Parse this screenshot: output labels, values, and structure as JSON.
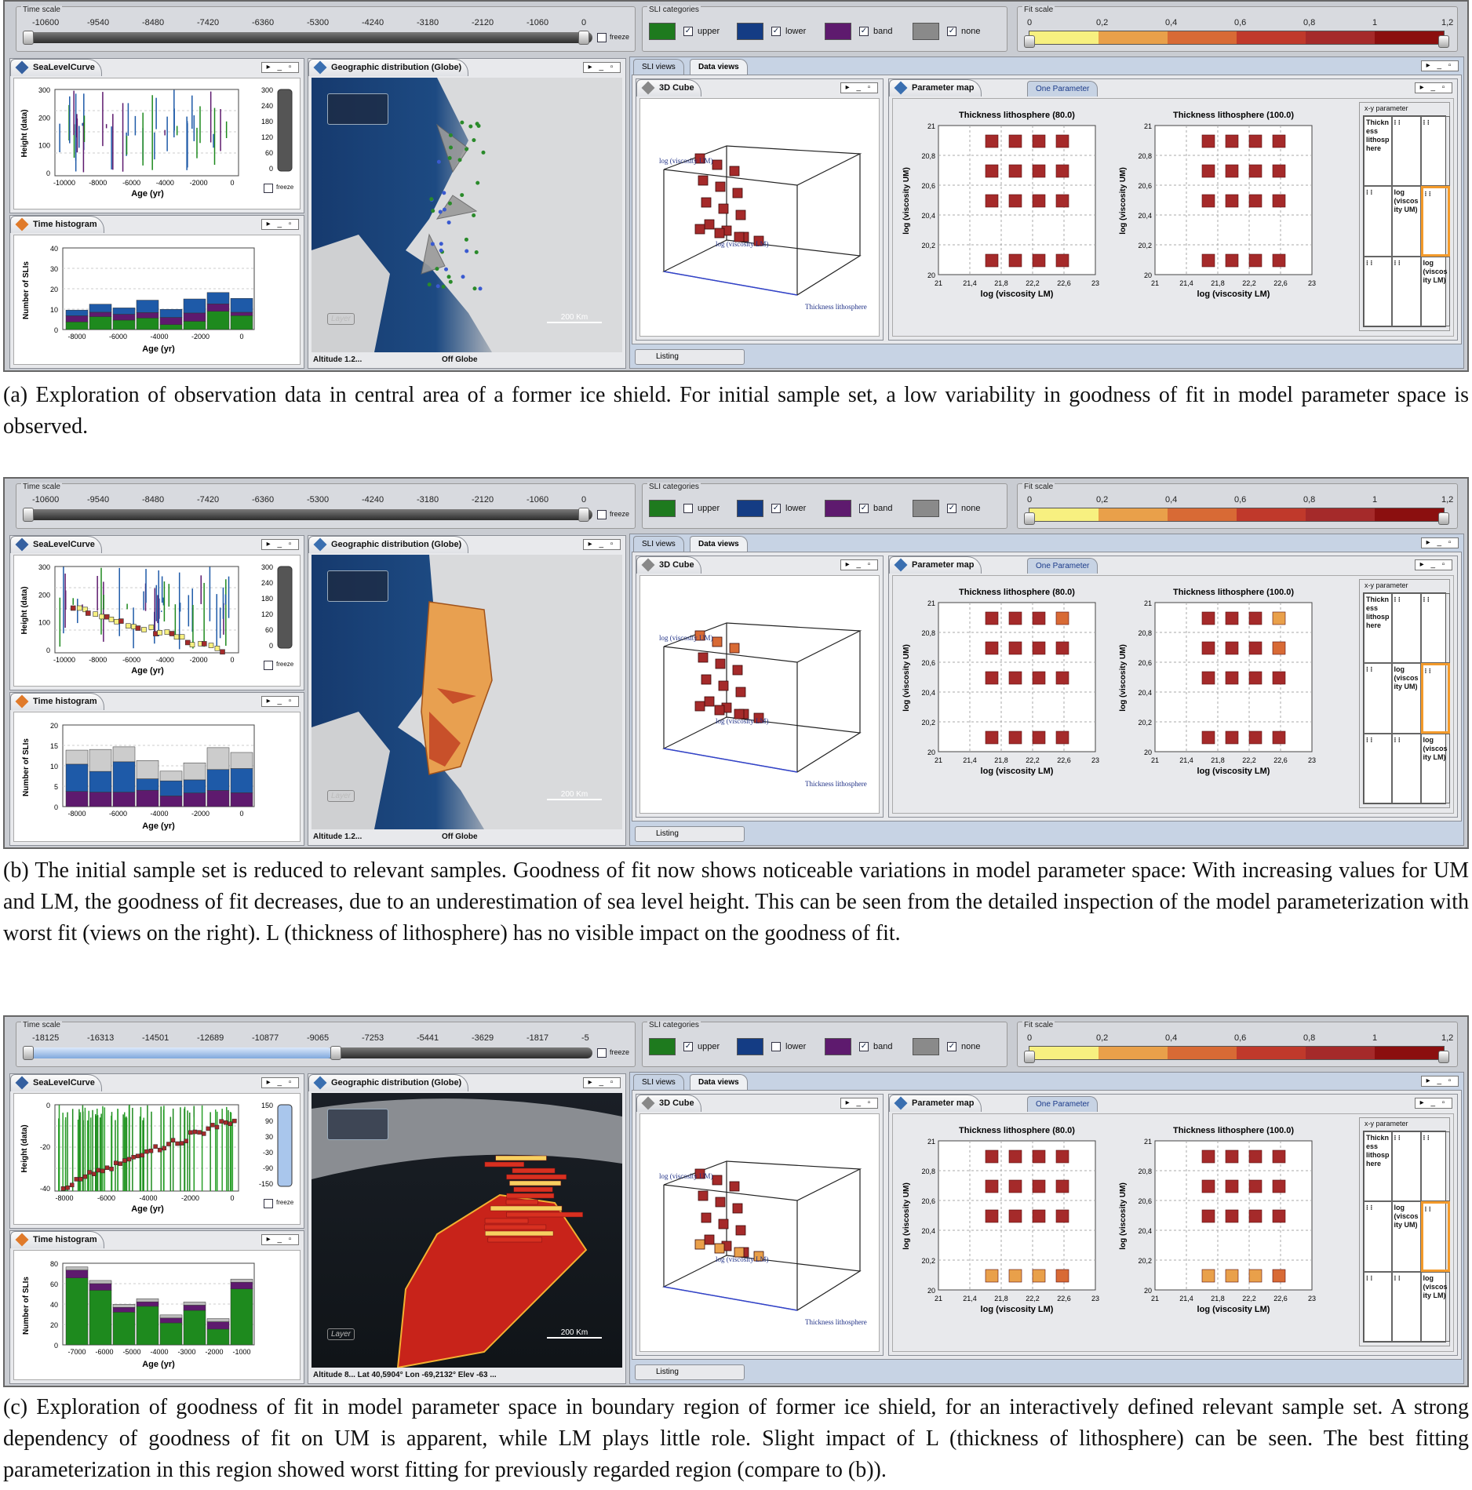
{
  "common": {
    "time_scale_label": "Time scale",
    "freeze_label": "freeze",
    "sli_categories_label": "SLI categories",
    "fit_scale_label": "Fit scale",
    "fit_ticks": [
      "0",
      "0,2",
      "0,4",
      "0,6",
      "0,8",
      "1",
      "1,2"
    ],
    "category_labels": [
      "upper",
      "lower",
      "band",
      "none"
    ],
    "sea_level_tab": "SeaLevelCurve",
    "geo_tab": "Geographic distribution (Globe)",
    "time_hist_tab": "Time histogram",
    "sli_views_tab": "SLI views",
    "data_views_tab": "Data views",
    "cube_tab": "3D Cube",
    "param_map_tab": "Parameter map",
    "one_param_tab": "One Parameter",
    "listing_label": "Listing",
    "xy_parameter_label": "x-y parameter",
    "pm_title_1": "Thickness lithosphere (80.0)",
    "pm_title_2": "Thickness lithosphere (100.0)",
    "pm_xlabel": "log (viscosity LM)",
    "pm_ylabel": "log (viscosity UM)",
    "pm_xticks": [
      "21",
      "21,4",
      "21,8",
      "22,2",
      "22,6",
      "23"
    ],
    "pm_yticks": [
      "21",
      "20,8",
      "20,6",
      "20,4",
      "20,2",
      "20"
    ],
    "cube_label_um": "log (viscosity UM)",
    "cube_label_lm": "log (viscosity LM)",
    "cube_label_thick": "Thickness lithosphere",
    "height_label": "Height (data)",
    "age_label": "Age (yr)",
    "num_sli_label": "Number of SLIs",
    "scale_km": "200 Km",
    "layer_label": "Layer",
    "altitude_label": "Altitude",
    "grid_cells": [
      "Thickn ess lithosp here",
      "log (viscos ity UM)",
      "log (viscos ity LM)"
    ],
    "window_buttons": "▸ _ ▫"
  },
  "panels": [
    {
      "id": "a",
      "ts_ticks": [
        "-10600",
        "-9540",
        "-8480",
        "-7420",
        "-6360",
        "-5300",
        "-4240",
        "-3180",
        "-2120",
        "-1060",
        "0"
      ],
      "checks": [
        "✓",
        "✓",
        "✓",
        "✓"
      ],
      "slc_yticks": [
        "300",
        "200",
        "100",
        "0"
      ],
      "slc_xticks": [
        "-10000",
        "-8000",
        "-6000",
        "-4000",
        "-2000",
        "0"
      ],
      "slider_ticks": [
        "300",
        "240",
        "180",
        "120",
        "60",
        "0"
      ],
      "hist_yticks": [
        "40",
        "30",
        "20",
        "10",
        "0"
      ],
      "hist_xticks": [
        "-8000",
        "-6000",
        "-4000",
        "-2000",
        "0"
      ],
      "status_left": "Altitude      1.2...",
      "status_right": "Off Globe",
      "caption": "(a)  Exploration of observation data in central area of a former ice shield. For initial sample set, a low variability in goodness of fit in model parameter space is observed."
    },
    {
      "id": "b",
      "ts_ticks": [
        "-10600",
        "-9540",
        "-8480",
        "-7420",
        "-6360",
        "-5300",
        "-4240",
        "-3180",
        "-2120",
        "-1060",
        "0"
      ],
      "checks": [
        "",
        "✓",
        "✓",
        "✓"
      ],
      "slc_yticks": [
        "300",
        "200",
        "100",
        "0"
      ],
      "slc_xticks": [
        "-10000",
        "-8000",
        "-6000",
        "-4000",
        "-2000",
        "0"
      ],
      "slider_ticks": [
        "300",
        "240",
        "180",
        "120",
        "60",
        "0"
      ],
      "hist_yticks": [
        "20",
        "15",
        "10",
        "5",
        "0"
      ],
      "hist_xticks": [
        "-8000",
        "-6000",
        "-4000",
        "-2000",
        "0"
      ],
      "status_left": "Altitude      1.2...",
      "status_right": "Off Globe",
      "caption": "(b)  The initial sample set is reduced to relevant samples. Goodness of fit now shows noticeable variations in model parameter space: With increasing values for UM and LM, the goodness of fit decreases, due to an underestimation of sea level height. This can be seen from the detailed inspection of the model parameterization with worst fit (views on the right). L (thickness of lithosphere) has no visible impact on the goodness of fit."
    },
    {
      "id": "c",
      "ts_ticks": [
        "-18125",
        "-16313",
        "-14501",
        "-12689",
        "-10877",
        "-9065",
        "-7253",
        "-5441",
        "-3629",
        "-1817",
        "-5"
      ],
      "checks": [
        "✓",
        "",
        "✓",
        "✓"
      ],
      "slc_yticks": [
        "0",
        "-20",
        "-40"
      ],
      "slc_xticks": [
        "-8000",
        "-6000",
        "-4000",
        "-2000",
        "0"
      ],
      "slider_ticks": [
        "150",
        "90",
        "30",
        "-30",
        "-90",
        "-150"
      ],
      "hist_yticks": [
        "80",
        "60",
        "40",
        "20",
        "0"
      ],
      "hist_xticks": [
        "-7000",
        "-6000",
        "-5000",
        "-4000",
        "-3000",
        "-2000",
        "-1000"
      ],
      "status_left": "Altitude      8...    Lat 40,5904°    Lon -69,2132°   Elev      -63 ...",
      "status_right": "",
      "caption": "(c)  Exploration of goodness of fit in model parameter space in boundary region of former ice shield, for an interactively defined relevant sample set. A strong dependency of goodness of fit on UM is apparent, while LM plays little role. Slight impact of L (thickness of lithosphere) can be seen. The best fitting parameterization in this region showed worst fitting for previously regarded region (compare to (b))."
    }
  ]
}
